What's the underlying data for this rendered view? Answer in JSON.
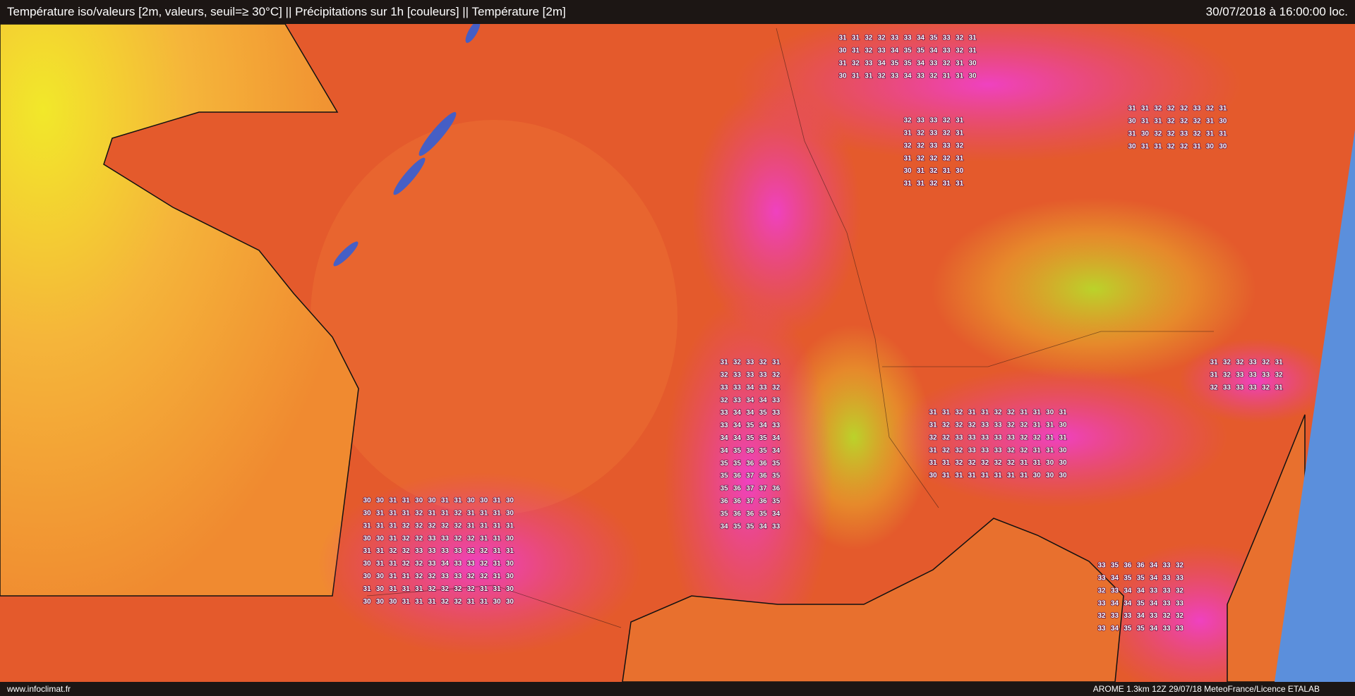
{
  "header": {
    "title": "Température iso/valeurs [2m, valeurs, seuil=≥ 30°C] || Précipitations sur 1h [couleurs] || Température [2m]",
    "datetime": "30/07/2018 à 16:00:00 loc."
  },
  "footer": {
    "source": "www.infoclimat.fr",
    "credits": "AROME 1.3km 12Z 29/07/18 MeteoFrance/Licence ETALAB"
  },
  "map": {
    "value_grids": [
      [
        [
          31,
          31,
          32,
          32,
          33,
          33,
          34,
          35,
          33,
          32,
          31
        ],
        [
          30,
          31,
          32,
          33,
          34,
          35,
          35,
          34,
          33,
          32,
          31
        ],
        [
          31,
          32,
          33,
          34,
          35,
          35,
          34,
          33,
          32,
          31,
          30
        ],
        [
          30,
          31,
          31,
          32,
          33,
          34,
          33,
          32,
          31,
          31,
          30
        ]
      ],
      [
        [
          31,
          31,
          32,
          32,
          32,
          33,
          32,
          31
        ],
        [
          30,
          31,
          31,
          32,
          32,
          32,
          31,
          30
        ],
        [
          31,
          30,
          32,
          32,
          33,
          32,
          31,
          31
        ],
        [
          30,
          31,
          31,
          32,
          32,
          31,
          30,
          30
        ]
      ],
      [
        [
          32,
          33,
          33,
          32,
          31
        ],
        [
          31,
          32,
          33,
          32,
          31
        ],
        [
          32,
          32,
          33,
          33,
          32
        ],
        [
          31,
          32,
          32,
          32,
          31
        ],
        [
          30,
          31,
          32,
          31,
          30
        ],
        [
          31,
          31,
          32,
          31,
          31
        ]
      ],
      [
        [
          31,
          32,
          33,
          32,
          31
        ],
        [
          32,
          33,
          33,
          33,
          32
        ],
        [
          33,
          33,
          34,
          33,
          32
        ],
        [
          32,
          33,
          34,
          34,
          33
        ],
        [
          33,
          34,
          34,
          35,
          33
        ],
        [
          33,
          34,
          35,
          34,
          33
        ],
        [
          34,
          34,
          35,
          35,
          34
        ],
        [
          34,
          35,
          36,
          35,
          34
        ],
        [
          35,
          35,
          36,
          36,
          35
        ],
        [
          35,
          36,
          37,
          36,
          35
        ],
        [
          35,
          36,
          37,
          37,
          36
        ],
        [
          36,
          36,
          37,
          36,
          35
        ],
        [
          35,
          36,
          36,
          35,
          34
        ],
        [
          34,
          35,
          35,
          34,
          33
        ]
      ],
      [
        [
          30,
          30,
          31,
          31,
          30,
          30,
          31,
          31,
          30,
          30,
          31,
          30
        ],
        [
          30,
          31,
          31,
          31,
          32,
          31,
          31,
          32,
          31,
          31,
          31,
          30
        ],
        [
          31,
          31,
          31,
          32,
          32,
          32,
          32,
          32,
          31,
          31,
          31,
          31
        ],
        [
          30,
          30,
          31,
          32,
          32,
          33,
          33,
          32,
          32,
          31,
          31,
          30
        ],
        [
          31,
          31,
          32,
          32,
          33,
          33,
          33,
          33,
          32,
          32,
          31,
          31
        ],
        [
          30,
          31,
          31,
          32,
          32,
          33,
          34,
          33,
          33,
          32,
          31,
          30
        ],
        [
          30,
          30,
          31,
          31,
          32,
          32,
          33,
          33,
          32,
          32,
          31,
          30
        ],
        [
          31,
          30,
          31,
          31,
          31,
          32,
          32,
          32,
          32,
          31,
          31,
          30
        ],
        [
          30,
          30,
          30,
          31,
          31,
          31,
          32,
          32,
          31,
          31,
          30,
          30
        ]
      ],
      [
        [
          31,
          31,
          32,
          31,
          31,
          32,
          32,
          31,
          31,
          30,
          31
        ],
        [
          31,
          32,
          32,
          32,
          33,
          33,
          32,
          32,
          31,
          31,
          30
        ],
        [
          32,
          32,
          33,
          33,
          33,
          33,
          33,
          32,
          32,
          31,
          31
        ],
        [
          31,
          32,
          32,
          33,
          33,
          33,
          32,
          32,
          31,
          31,
          30
        ],
        [
          31,
          31,
          32,
          32,
          32,
          32,
          32,
          31,
          31,
          30,
          30
        ],
        [
          30,
          31,
          31,
          31,
          31,
          31,
          31,
          31,
          30,
          30,
          30
        ]
      ],
      [
        [
          33,
          35,
          36,
          36,
          34,
          33,
          32
        ],
        [
          33,
          34,
          35,
          35,
          34,
          33,
          33
        ],
        [
          32,
          33,
          34,
          34,
          33,
          33,
          32
        ],
        [
          33,
          34,
          34,
          35,
          34,
          33,
          33
        ],
        [
          32,
          33,
          33,
          34,
          33,
          32,
          32
        ],
        [
          33,
          34,
          35,
          35,
          34,
          33,
          33
        ]
      ],
      [
        [
          31,
          32,
          32,
          33,
          32,
          31
        ],
        [
          31,
          32,
          33,
          33,
          33,
          32
        ],
        [
          32,
          33,
          33,
          33,
          32,
          31
        ]
      ]
    ]
  }
}
